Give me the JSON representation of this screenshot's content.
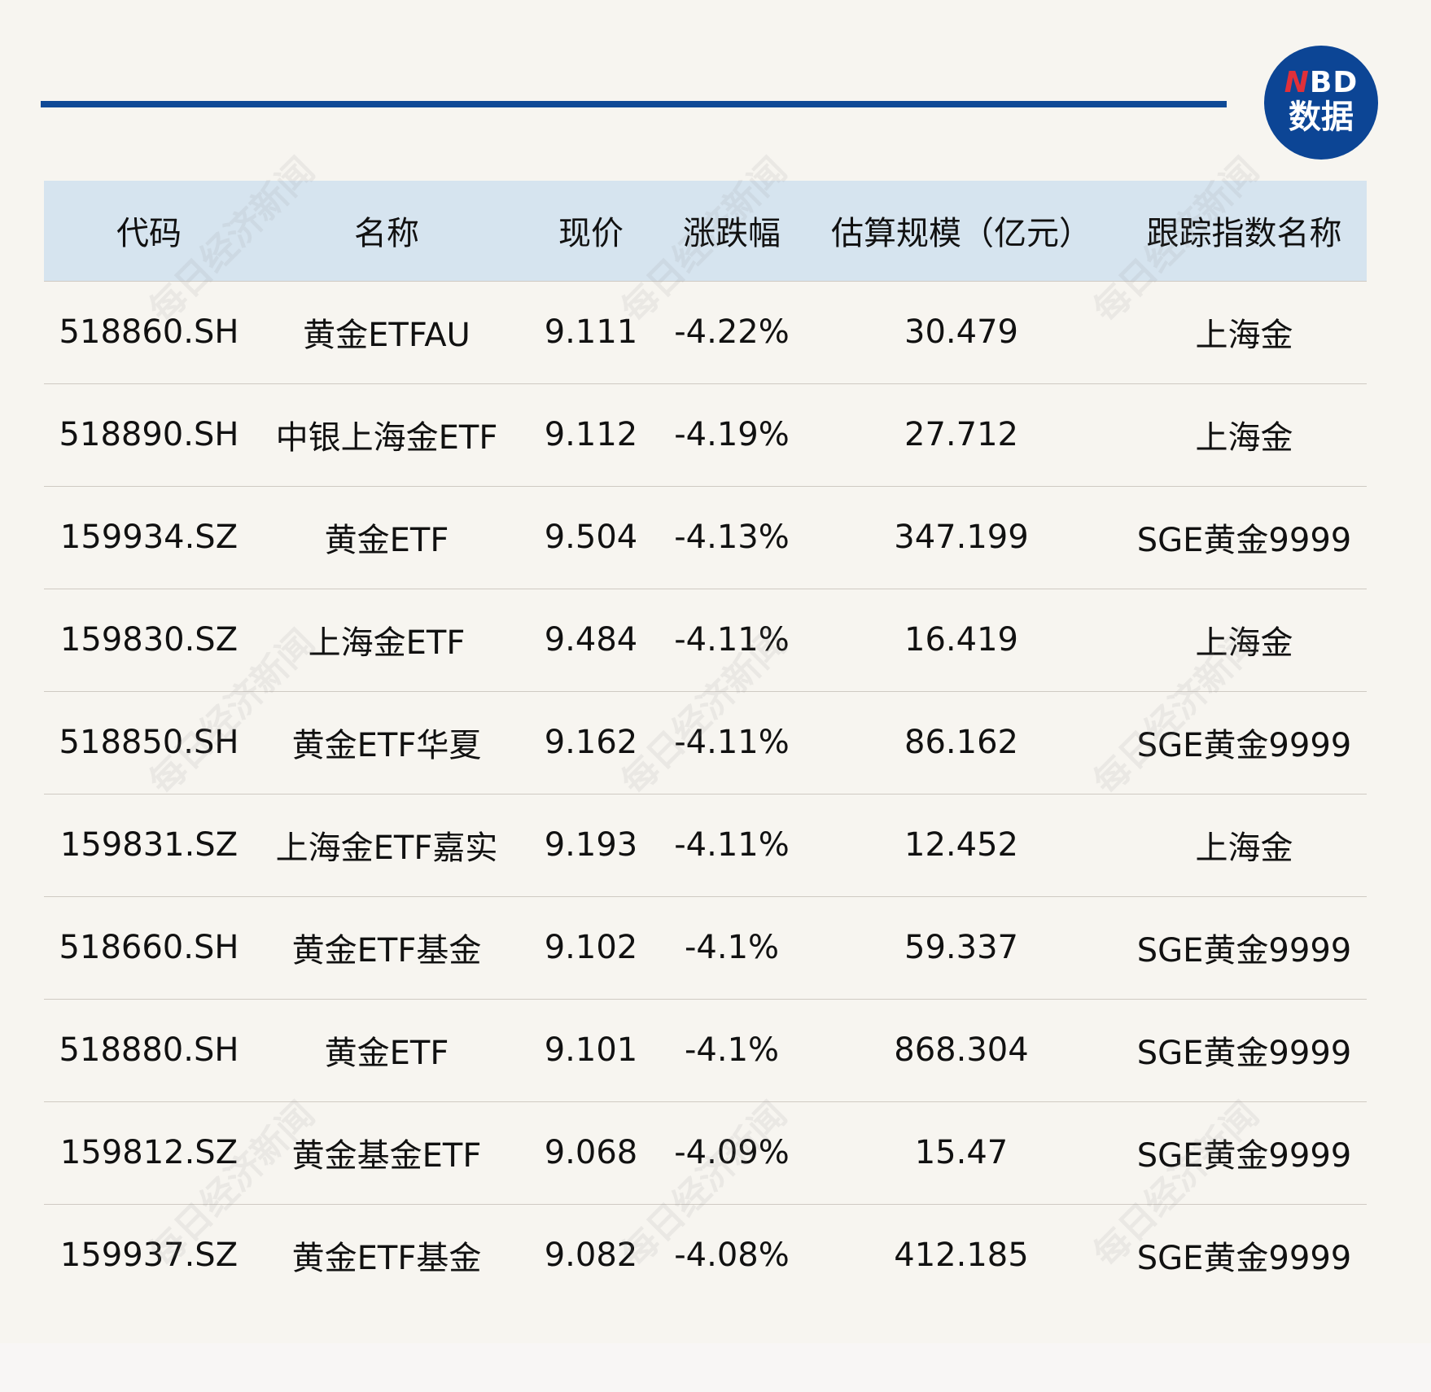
{
  "logo": {
    "n": "N",
    "bd": "BD",
    "sub": "数据"
  },
  "colors": {
    "accent": "#0f4a96",
    "header_bg": "#d6e4ef",
    "background": "#f7f5f0",
    "logo_red": "#e0303a"
  },
  "watermark": "每日经济新闻",
  "table": {
    "headers": [
      "代码",
      "名称",
      "现价",
      "涨跌幅",
      "估算规模（亿元）",
      "跟踪指数名称"
    ],
    "rows": [
      [
        "518860.SH",
        "黄金ETFAU",
        "9.111",
        "-4.22%",
        "30.479",
        "上海金"
      ],
      [
        "518890.SH",
        "中银上海金ETF",
        "9.112",
        "-4.19%",
        "27.712",
        "上海金"
      ],
      [
        "159934.SZ",
        "黄金ETF",
        "9.504",
        "-4.13%",
        "347.199",
        "SGE黄金9999"
      ],
      [
        "159830.SZ",
        "上海金ETF",
        "9.484",
        "-4.11%",
        "16.419",
        "上海金"
      ],
      [
        "518850.SH",
        "黄金ETF华夏",
        "9.162",
        "-4.11%",
        "86.162",
        "SGE黄金9999"
      ],
      [
        "159831.SZ",
        "上海金ETF嘉实",
        "9.193",
        "-4.11%",
        "12.452",
        "上海金"
      ],
      [
        "518660.SH",
        "黄金ETF基金",
        "9.102",
        "-4.1%",
        "59.337",
        "SGE黄金9999"
      ],
      [
        "518880.SH",
        "黄金ETF",
        "9.101",
        "-4.1%",
        "868.304",
        "SGE黄金9999"
      ],
      [
        "159812.SZ",
        "黄金基金ETF",
        "9.068",
        "-4.09%",
        "15.47",
        "SGE黄金9999"
      ],
      [
        "159937.SZ",
        "黄金ETF基金",
        "9.082",
        "-4.08%",
        "412.185",
        "SGE黄金9999"
      ]
    ]
  }
}
